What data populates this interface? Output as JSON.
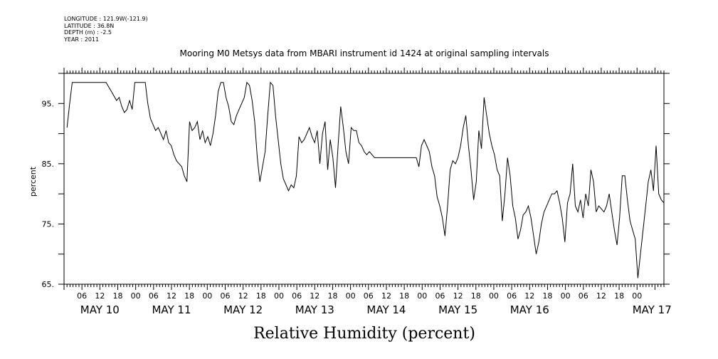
{
  "meta": {
    "longitude": "LONGITUDE : 121.9W(-121.9)",
    "latitude": "LATITUDE : 36.8N",
    "depth": "DEPTH (m) : -2.5",
    "year": "YEAR : 2011"
  },
  "chart_data": {
    "type": "line",
    "title": "Mooring M0 Metsys data from MBARI instrument id 1424 at original sampling intervals",
    "xlabel": "Relative Humidity (percent)",
    "ylabel": "percent",
    "ylim": [
      65,
      100
    ],
    "yticks": [
      65,
      75,
      85,
      95
    ],
    "xlim_hours": [
      0,
      201
    ],
    "hour_ticks": [
      "06",
      "12",
      "18",
      "00",
      "06",
      "12",
      "18",
      "00",
      "06",
      "12",
      "18",
      "00",
      "06",
      "12",
      "18",
      "00",
      "06",
      "12",
      "18",
      "00",
      "06",
      "12",
      "18",
      "00",
      "06",
      "12",
      "18",
      "00",
      "06",
      "12",
      "18",
      "00"
    ],
    "day_labels": [
      "MAY 10",
      "MAY 11",
      "MAY 12",
      "MAY 13",
      "MAY 14",
      "MAY 15",
      "MAY 16",
      "MAY 17"
    ],
    "grid": false,
    "series": [
      {
        "points": [
          [
            4,
            91
          ],
          [
            5,
            95
          ],
          [
            6,
            98.5
          ],
          [
            10,
            98.5
          ],
          [
            16,
            98.5
          ],
          [
            19,
            98.5
          ],
          [
            21,
            97
          ],
          [
            23,
            95.5
          ],
          [
            24,
            96
          ],
          [
            25,
            94.5
          ],
          [
            26,
            93.5
          ],
          [
            27,
            94
          ],
          [
            28,
            95.5
          ],
          [
            29,
            94
          ],
          [
            30,
            98.5
          ],
          [
            34,
            98.5
          ],
          [
            35,
            95
          ],
          [
            36,
            92.5
          ],
          [
            37,
            91.5
          ],
          [
            38,
            90.5
          ],
          [
            39,
            91
          ],
          [
            40,
            90
          ],
          [
            41,
            89
          ],
          [
            42,
            90.5
          ],
          [
            43,
            88.5
          ],
          [
            44,
            88
          ],
          [
            45,
            86.5
          ],
          [
            46,
            85.5
          ],
          [
            47,
            85
          ],
          [
            48,
            84.5
          ],
          [
            49,
            83
          ],
          [
            50,
            82
          ],
          [
            51,
            92
          ],
          [
            52,
            90.5
          ],
          [
            53,
            91
          ],
          [
            54,
            92
          ],
          [
            55,
            89
          ],
          [
            56,
            90.5
          ],
          [
            57,
            88.5
          ],
          [
            58,
            89.5
          ],
          [
            59,
            88
          ],
          [
            60,
            90
          ],
          [
            61,
            93
          ],
          [
            62,
            97
          ],
          [
            63,
            98.5
          ],
          [
            64,
            98.5
          ],
          [
            65,
            96
          ],
          [
            66,
            94.5
          ],
          [
            67,
            92
          ],
          [
            68,
            91.5
          ],
          [
            69,
            93
          ],
          [
            70,
            94
          ],
          [
            71,
            95
          ],
          [
            72,
            96
          ],
          [
            73,
            98.5
          ],
          [
            74,
            98
          ],
          [
            75,
            95.5
          ],
          [
            76,
            92
          ],
          [
            77,
            86
          ],
          [
            78,
            82
          ],
          [
            79,
            84.5
          ],
          [
            80,
            87
          ],
          [
            81,
            93
          ],
          [
            82,
            98.5
          ],
          [
            83,
            98
          ],
          [
            84,
            93
          ],
          [
            85,
            89
          ],
          [
            86,
            85
          ],
          [
            87,
            82.5
          ],
          [
            88,
            81.5
          ],
          [
            89,
            80.5
          ],
          [
            90,
            81.5
          ],
          [
            91,
            81
          ],
          [
            92,
            83
          ],
          [
            93,
            89.5
          ],
          [
            94,
            88.5
          ],
          [
            95,
            89
          ],
          [
            96,
            90
          ],
          [
            97,
            91
          ],
          [
            98,
            89.5
          ],
          [
            99,
            88.5
          ],
          [
            100,
            90.5
          ],
          [
            101,
            85
          ],
          [
            102,
            90
          ],
          [
            103,
            92
          ],
          [
            104,
            84
          ],
          [
            105,
            89
          ],
          [
            106,
            86
          ],
          [
            107,
            81
          ],
          [
            108,
            88
          ],
          [
            109,
            94.5
          ],
          [
            110,
            91
          ],
          [
            111,
            87
          ],
          [
            112,
            85
          ],
          [
            113,
            91
          ],
          [
            114,
            90.5
          ],
          [
            115,
            90.5
          ],
          [
            116,
            88.5
          ],
          [
            117,
            88
          ],
          [
            118,
            87
          ],
          [
            119,
            86.5
          ],
          [
            120,
            87
          ],
          [
            121,
            86.5
          ],
          [
            122,
            86
          ],
          [
            126,
            86
          ],
          [
            132,
            86
          ],
          [
            138,
            86
          ],
          [
            139,
            84.5
          ],
          [
            140,
            88
          ],
          [
            141,
            89
          ],
          [
            142,
            88
          ],
          [
            143,
            87
          ],
          [
            144,
            84.5
          ],
          [
            145,
            83
          ],
          [
            146,
            79.5
          ],
          [
            147,
            78
          ],
          [
            148,
            76
          ],
          [
            149,
            73
          ],
          [
            150,
            78
          ],
          [
            151,
            84
          ],
          [
            152,
            85.5
          ],
          [
            153,
            85
          ],
          [
            154,
            86
          ],
          [
            155,
            88
          ],
          [
            156,
            91
          ],
          [
            157,
            93
          ],
          [
            158,
            88
          ],
          [
            159,
            84
          ],
          [
            160,
            79
          ],
          [
            161,
            82
          ],
          [
            162,
            90.5
          ],
          [
            163,
            87.5
          ],
          [
            164,
            96
          ],
          [
            165,
            93
          ],
          [
            166,
            90
          ],
          [
            167,
            88
          ],
          [
            168,
            86.5
          ],
          [
            169,
            84
          ],
          [
            170,
            83
          ],
          [
            171,
            75.5
          ],
          [
            172,
            80
          ],
          [
            173,
            86
          ],
          [
            174,
            83
          ],
          [
            175,
            78
          ],
          [
            176,
            76
          ],
          [
            177,
            72.5
          ],
          [
            178,
            74
          ],
          [
            179,
            76.5
          ],
          [
            180,
            77
          ],
          [
            181,
            78
          ],
          [
            182,
            76
          ],
          [
            183,
            73
          ],
          [
            184,
            70
          ],
          [
            185,
            72
          ],
          [
            186,
            75
          ],
          [
            187,
            77
          ],
          [
            188,
            78
          ],
          [
            189,
            79
          ],
          [
            190,
            80
          ],
          [
            191,
            80
          ],
          [
            192,
            80.5
          ],
          [
            193,
            78.5
          ],
          [
            194,
            76
          ],
          [
            195,
            72
          ],
          [
            196,
            78.5
          ],
          [
            197,
            80
          ],
          [
            198,
            85
          ],
          [
            199,
            78
          ],
          [
            200,
            77
          ],
          [
            201,
            79
          ],
          [
            202,
            76
          ],
          [
            203,
            80
          ],
          [
            204,
            78
          ],
          [
            205,
            84
          ],
          [
            206,
            82
          ],
          [
            207,
            77
          ],
          [
            208,
            78
          ],
          [
            209,
            77.5
          ],
          [
            210,
            77
          ],
          [
            211,
            78
          ],
          [
            212,
            80
          ],
          [
            213,
            77
          ],
          [
            214,
            74
          ],
          [
            215,
            71.5
          ],
          [
            216,
            76
          ],
          [
            217,
            83
          ],
          [
            218,
            83
          ],
          [
            219,
            79
          ],
          [
            220,
            75.5
          ],
          [
            221,
            74
          ],
          [
            222,
            72.5
          ],
          [
            223,
            66
          ],
          [
            224,
            70
          ],
          [
            225,
            74
          ],
          [
            226,
            78
          ],
          [
            227,
            82
          ],
          [
            228,
            84
          ],
          [
            229,
            80.5
          ],
          [
            230,
            88
          ],
          [
            231,
            80
          ],
          [
            232,
            79
          ],
          [
            233,
            78.5
          ]
        ]
      }
    ]
  }
}
